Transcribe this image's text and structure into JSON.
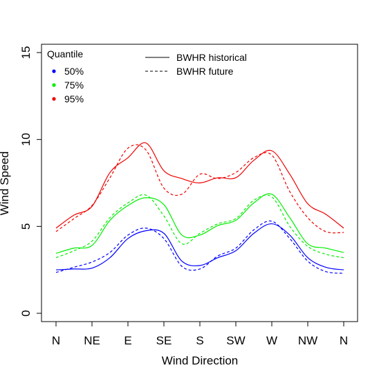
{
  "chart_data": {
    "type": "line",
    "title": "",
    "xlabel": "Wind Direction",
    "ylabel": "Wind Speed",
    "x_tick_labels": [
      "N",
      "NE",
      "E",
      "SE",
      "S",
      "SW",
      "W",
      "NW",
      "N"
    ],
    "y_ticks": [
      0,
      5,
      10,
      15
    ],
    "y_tick_labels": [
      "0",
      "5",
      "10",
      "15"
    ],
    "xlim": [
      0,
      360
    ],
    "ylim": [
      0,
      15
    ],
    "grid": false,
    "legend_quantile": {
      "title": "Quantile",
      "entries": [
        {
          "label": "50%",
          "color": "#0000ff"
        },
        {
          "label": "75%",
          "color": "#00ee00"
        },
        {
          "label": "95%",
          "color": "#ee0000"
        }
      ]
    },
    "legend_scenario": {
      "entries": [
        {
          "label": "BWHR historical",
          "style": "solid"
        },
        {
          "label": "BWHR future",
          "style": "dashed"
        }
      ]
    },
    "x": [
      0,
      22.5,
      45,
      67.5,
      90,
      112.5,
      135,
      157.5,
      180,
      202.5,
      225,
      247.5,
      270,
      292.5,
      315,
      337.5,
      360
    ],
    "series": [
      {
        "quantile": "50%",
        "scenario": "BWHR historical",
        "color": "#0000ff",
        "dash": "solid",
        "values": [
          2.5,
          2.55,
          2.6,
          3.2,
          4.3,
          4.75,
          4.6,
          3.0,
          2.75,
          3.2,
          3.6,
          4.6,
          5.15,
          4.5,
          3.2,
          2.65,
          2.5
        ]
      },
      {
        "quantile": "50%",
        "scenario": "BWHR future",
        "color": "#0000ff",
        "dash": "dashed",
        "values": [
          2.35,
          2.65,
          2.95,
          3.5,
          4.5,
          4.9,
          4.3,
          2.7,
          2.55,
          3.3,
          3.75,
          4.8,
          5.3,
          4.3,
          3.0,
          2.4,
          2.3
        ]
      },
      {
        "quantile": "75%",
        "scenario": "BWHR historical",
        "color": "#00ee00",
        "dash": "solid",
        "values": [
          3.45,
          3.75,
          3.9,
          5.35,
          6.2,
          6.65,
          6.25,
          4.5,
          4.5,
          5.05,
          5.35,
          6.35,
          6.85,
          5.5,
          4.0,
          3.75,
          3.5
        ]
      },
      {
        "quantile": "75%",
        "scenario": "BWHR future",
        "color": "#00ee00",
        "dash": "dashed",
        "values": [
          3.2,
          3.6,
          4.15,
          5.5,
          6.35,
          6.8,
          5.6,
          4.0,
          4.6,
          5.15,
          5.45,
          6.5,
          6.7,
          5.0,
          3.85,
          3.4,
          3.2
        ]
      },
      {
        "quantile": "95%",
        "scenario": "BWHR historical",
        "color": "#ee0000",
        "dash": "solid",
        "values": [
          4.9,
          5.65,
          6.15,
          8.1,
          8.95,
          9.8,
          8.2,
          7.75,
          7.5,
          7.8,
          7.8,
          8.8,
          9.35,
          8.0,
          6.3,
          5.7,
          4.9
        ]
      },
      {
        "quantile": "95%",
        "scenario": "BWHR future",
        "color": "#ee0000",
        "dash": "dashed",
        "values": [
          4.7,
          5.45,
          6.2,
          7.8,
          9.5,
          9.4,
          7.2,
          6.85,
          8.0,
          7.75,
          8.1,
          8.95,
          9.1,
          7.0,
          5.5,
          4.7,
          4.65
        ]
      }
    ]
  }
}
